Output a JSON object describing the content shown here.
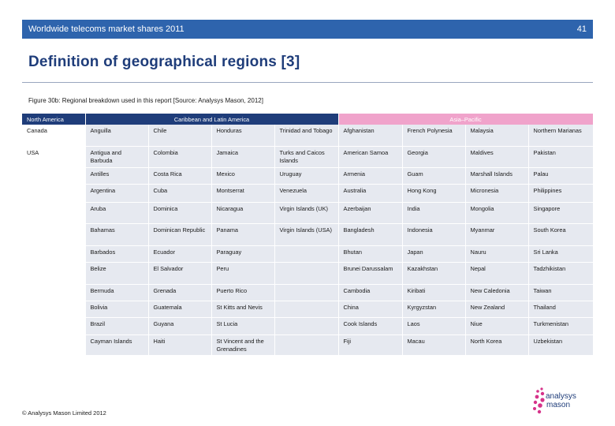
{
  "header": {
    "title": "Worldwide telecoms market shares 2011",
    "page_number": "41"
  },
  "page_title": "Definition of geographical regions [3]",
  "caption": "Figure 30b: Regional breakdown used in this report [Source: Analysys Mason, 2012]",
  "table": {
    "regions": [
      "North America",
      "Caribbean and Latin America",
      "Asia–Pacific"
    ],
    "north_america": [
      "Canada",
      "USA"
    ],
    "rows": [
      [
        "Anguilla",
        "Chile",
        "Honduras",
        "Trinidad and Tobago",
        "Afghanistan",
        "French Polynesia",
        "Malaysia",
        "Northern Marianas"
      ],
      [
        "Antigua and Barbuda",
        "Colombia",
        "Jamaica",
        "Turks and Caicos Islands",
        "American Samoa",
        "Georgia",
        "Maldives",
        "Pakistan"
      ],
      [
        "Antilles",
        "Costa Rica",
        "Mexico",
        "Uruguay",
        "Armenia",
        "Guam",
        "Marshall Islands",
        "Palau"
      ],
      [
        "Argentina",
        "Cuba",
        "Montserrat",
        "Venezuela",
        "Australia",
        "Hong Kong",
        "Micronesia",
        "Philippines"
      ],
      [
        "Aruba",
        "Dominica",
        "Nicaragua",
        "Virgin Islands (UK)",
        "Azerbaijan",
        "India",
        "Mongolia",
        "Singapore"
      ],
      [
        "Bahamas",
        "Dominican Republic",
        "Panama",
        "Virgin Islands (USA)",
        "Bangladesh",
        "Indonesia",
        "Myanmar",
        "South Korea"
      ],
      [
        "Barbados",
        "Ecuador",
        "Paraguay",
        "",
        "Bhutan",
        "Japan",
        "Nauru",
        "Sri Lanka"
      ],
      [
        "Belize",
        "El Salvador",
        "Peru",
        "",
        "Brunei Darussalam",
        "Kazakhstan",
        "Nepal",
        "Tadzhikistan"
      ],
      [
        "Bermuda",
        "Grenada",
        "Puerto Rico",
        "",
        "Cambodia",
        "Kiribati",
        "New Caledonia",
        "Taiwan"
      ],
      [
        "Bolivia",
        "Guatemala",
        "St Kitts and Nevis",
        "",
        "China",
        "Kyrgyzstan",
        "New Zealand",
        "Thailand"
      ],
      [
        "Brazil",
        "Guyana",
        "St Lucia",
        "",
        "Cook Islands",
        "Laos",
        "Niue",
        "Turkmenistan"
      ],
      [
        "Cayman Islands",
        "Haiti",
        "St Vincent and the Grenadines",
        "",
        "Fiji",
        "Macau",
        "North Korea",
        "Uzbekistan"
      ]
    ]
  },
  "footer": {
    "copyright": "© Analysys Mason Limited 2012"
  },
  "logo": {
    "line1": "analysys",
    "line2": "mason"
  },
  "colors": {
    "banner": "#2e64ad",
    "dark_header": "#1f3d7a",
    "pink_header": "#f0a3cb",
    "cell_fill": "#e6e9f0",
    "logo_dots": "#d6338a"
  }
}
